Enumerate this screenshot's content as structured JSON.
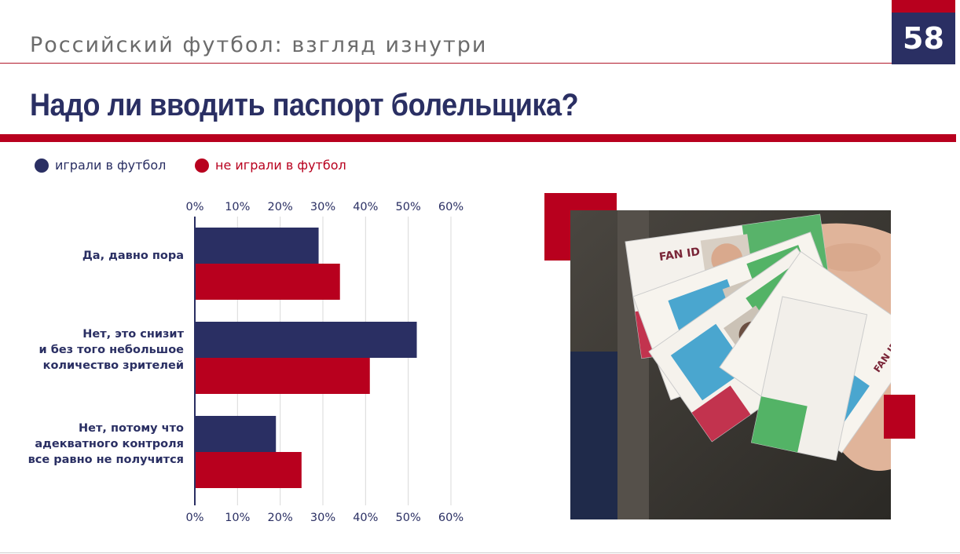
{
  "header": {
    "subtitle": "Российский футбол: взгляд изнутри",
    "page_number": "58",
    "title": "Надо ли вводить паспорт болельщика?"
  },
  "colors": {
    "navy": "#2a2f63",
    "red": "#b8001e"
  },
  "legend": [
    {
      "label": "играли в футбол",
      "color": "#2a2f63"
    },
    {
      "label": "не играли в футбол",
      "color": "#b8001e"
    }
  ],
  "photo": {
    "card_text": "FAN ID",
    "description_icon": "fan-id-cards-photo"
  },
  "chart_data": {
    "type": "bar",
    "orientation": "horizontal",
    "categories": [
      [
        "Да, давно пора"
      ],
      [
        "Нет, это снизит",
        "и без того небольшое",
        "количество зрителей"
      ],
      [
        "Нет, потому что",
        "адекватного контроля",
        "все равно не получится"
      ]
    ],
    "series": [
      {
        "name": "играли в футбол",
        "color": "#2a2f63",
        "values": [
          29,
          52,
          19
        ]
      },
      {
        "name": "не играли в футбол",
        "color": "#b8001e",
        "values": [
          34,
          41,
          25
        ]
      }
    ],
    "xlim": [
      0,
      60
    ],
    "ticks": [
      "0%",
      "10%",
      "20%",
      "30%",
      "40%",
      "50%",
      "60%"
    ],
    "tick_values": [
      0,
      10,
      20,
      30,
      40,
      50,
      60
    ],
    "grid": true,
    "tick_labels_position": "top-and-bottom",
    "legend_position": "top-left"
  }
}
